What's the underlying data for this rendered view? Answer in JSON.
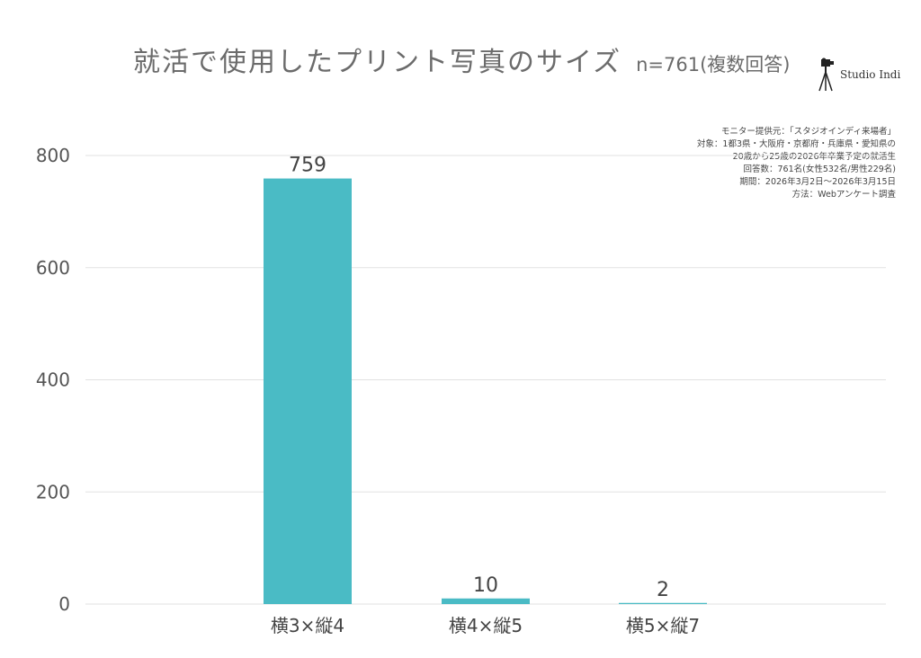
{
  "title": "就活で使用したプリント写真のサイズ",
  "subtitle": "n=761(複数回答)",
  "logo": {
    "text": "Studio Indi",
    "icon": "tripod-camera-icon"
  },
  "notes": [
    "モニター提供元：「スタジオインディ来場者」",
    "対象：1都3県・大阪府・京都府・兵庫県・愛知県の",
    "20歳から25歳の2026年卒業予定の就活生",
    "回答数：761名(女性532名/男性229名)",
    "期間：2026年3月2日〜2026年3月15日",
    "方法：Webアンケート調査"
  ],
  "chart_data": {
    "type": "bar",
    "title": "就活で使用したプリント写真のサイズ",
    "subtitle": "n=761(複数回答)",
    "categories": [
      "横3×縦4",
      "横4×縦5",
      "横5×縦7"
    ],
    "values": [
      759,
      10,
      2
    ],
    "yticks": [
      0,
      200,
      400,
      600,
      800
    ],
    "ylim": [
      0,
      800
    ],
    "grid": true,
    "bar_color": "#4abbc5",
    "grid_color": "#e2e2e2",
    "data_labels": [
      "759",
      "10",
      "2"
    ]
  }
}
